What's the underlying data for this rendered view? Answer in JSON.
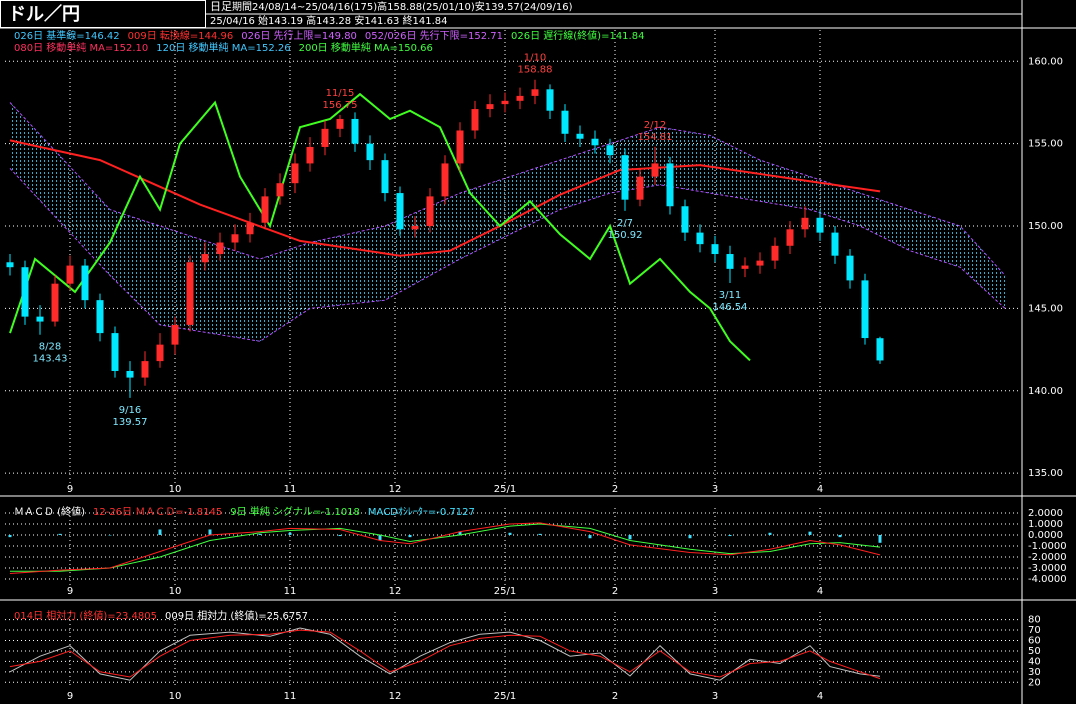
{
  "header": {
    "title": "ドル／円",
    "period_type": "日足",
    "period": "期間24/08/14~25/04/16(175)高158.88(25/01/10)安139.57(24/09/16)",
    "date": "25/04/16",
    "ohlc": "始143.19 高143.28 安141.63 終141.84"
  },
  "chart_data": [
    {
      "type": "candlestick",
      "up_color": "#ff2a2a",
      "down_color": "#00e8ff",
      "legend": [
        [
          {
            "text": "026日 基準線=146.42",
            "color": "#40c8ff"
          },
          {
            "text": "009日 転換線=144.96",
            "color": "#ff3030"
          },
          {
            "text": "026日 先行上限=149.80",
            "color": "#d060ff"
          },
          {
            "text": "052/026日 先行下限=152.71",
            "color": "#d060ff"
          },
          {
            "text": "026日 遅行線(終値)=141.84",
            "color": "#40ff40"
          }
        ],
        [
          {
            "text": "080日 移動単純 MA=152.10",
            "color": "#ff3060"
          },
          {
            "text": "120日 移動単純 MA=152.26",
            "color": "#40c8ff"
          },
          {
            "text": "200日 移動単純 MA=150.66",
            "color": "#40ff40"
          }
        ]
      ],
      "xlim": [
        -1,
        202
      ],
      "ylim": [
        134.4,
        161.9
      ],
      "xticks": [
        {
          "value": 12,
          "label": "9"
        },
        {
          "value": 33,
          "label": "10"
        },
        {
          "value": 56,
          "label": "11"
        },
        {
          "value": 77,
          "label": "12"
        },
        {
          "value": 99,
          "label": "25/1"
        },
        {
          "value": 121,
          "label": "2"
        },
        {
          "value": 141,
          "label": "3"
        },
        {
          "value": 162,
          "label": "4"
        }
      ],
      "yticks": [
        {
          "value": 135,
          "label": "135.00"
        },
        {
          "value": 140,
          "label": "140.00"
        },
        {
          "value": 145,
          "label": "145.00"
        },
        {
          "value": 150,
          "label": "150.00"
        },
        {
          "value": 155,
          "label": "155.00"
        },
        {
          "value": 160,
          "label": "160.00"
        }
      ],
      "x": [
        0,
        3,
        6,
        9,
        12,
        15,
        18,
        21,
        24,
        27,
        30,
        33,
        36,
        39,
        42,
        45,
        48,
        51,
        54,
        57,
        60,
        63,
        66,
        69,
        72,
        75,
        78,
        81,
        84,
        87,
        90,
        93,
        96,
        99,
        102,
        105,
        108,
        111,
        114,
        117,
        120,
        123,
        126,
        129,
        132,
        135,
        138,
        141,
        144,
        147,
        150,
        153,
        156,
        159,
        162,
        165,
        168,
        171,
        174
      ],
      "open": [
        147.8,
        147.5,
        144.5,
        144.2,
        146.5,
        147.6,
        145.5,
        143.5,
        141.2,
        140.8,
        141.8,
        142.8,
        144.0,
        147.8,
        148.3,
        149.0,
        149.5,
        150.2,
        151.8,
        152.6,
        153.8,
        154.8,
        155.9,
        156.5,
        155.0,
        154.0,
        152.0,
        149.8,
        150.0,
        151.8,
        153.8,
        155.8,
        157.1,
        157.4,
        157.6,
        157.9,
        158.3,
        157.0,
        155.6,
        155.3,
        154.9,
        154.3,
        151.6,
        153.0,
        153.8,
        151.2,
        149.6,
        148.9,
        148.3,
        147.4,
        147.6,
        147.9,
        148.8,
        149.8,
        150.5,
        149.6,
        148.2,
        146.7,
        143.19
      ],
      "high": [
        148.3,
        147.9,
        145.2,
        147.0,
        148.2,
        148.0,
        145.9,
        143.9,
        141.8,
        142.4,
        143.5,
        144.5,
        148.2,
        149.0,
        149.6,
        150.1,
        150.8,
        152.3,
        153.2,
        154.4,
        155.4,
        156.4,
        156.75,
        156.9,
        155.5,
        154.4,
        152.4,
        150.6,
        152.3,
        154.3,
        156.3,
        157.6,
        158.0,
        158.1,
        158.4,
        158.88,
        158.6,
        157.4,
        156.1,
        155.8,
        155.3,
        154.7,
        153.5,
        154.81,
        154.2,
        151.6,
        150.1,
        149.4,
        148.8,
        148.1,
        148.4,
        149.3,
        150.3,
        151.2,
        151.0,
        150.0,
        148.6,
        147.1,
        143.28
      ],
      "low": [
        147.0,
        144.0,
        143.4,
        143.9,
        146.1,
        145.0,
        143.0,
        140.8,
        139.57,
        140.3,
        141.4,
        142.2,
        143.6,
        147.3,
        147.9,
        148.5,
        149.0,
        149.8,
        151.3,
        152.0,
        153.3,
        154.3,
        155.4,
        154.5,
        153.4,
        151.5,
        149.4,
        149.3,
        149.6,
        151.3,
        153.3,
        155.3,
        156.6,
        156.9,
        157.1,
        157.4,
        156.5,
        155.1,
        154.8,
        154.4,
        153.8,
        150.92,
        151.2,
        152.5,
        150.7,
        149.1,
        148.4,
        147.8,
        146.54,
        146.9,
        147.1,
        147.4,
        148.3,
        149.3,
        149.1,
        147.7,
        146.2,
        142.8,
        141.63
      ],
      "close": [
        147.5,
        144.5,
        144.2,
        146.5,
        147.6,
        145.5,
        143.5,
        141.2,
        140.8,
        141.8,
        142.8,
        144.0,
        147.8,
        148.3,
        149.0,
        149.5,
        150.2,
        151.8,
        152.6,
        153.8,
        154.8,
        155.9,
        156.5,
        155.0,
        154.0,
        152.0,
        149.8,
        150.0,
        151.8,
        153.8,
        155.8,
        157.1,
        157.4,
        157.6,
        157.9,
        158.3,
        157.0,
        155.6,
        155.3,
        154.9,
        154.3,
        151.6,
        153.0,
        153.8,
        151.2,
        149.6,
        148.9,
        148.3,
        147.4,
        147.6,
        147.9,
        148.8,
        149.8,
        150.5,
        149.6,
        148.2,
        146.7,
        143.2,
        141.84
      ],
      "series": [
        {
          "color": "#b050ff",
          "style": "span",
          "x": [
            0,
            20,
            30,
            50,
            60,
            75,
            90,
            100,
            110,
            120,
            130,
            140,
            150,
            160,
            170,
            180,
            190,
            199
          ],
          "values": [
            157.5,
            151,
            150,
            148,
            149,
            150,
            152,
            153,
            154,
            155,
            156,
            155.5,
            154,
            153,
            152,
            151,
            150,
            147
          ]
        },
        {
          "color": "#b050ff",
          "style": "span",
          "x": [
            0,
            20,
            30,
            50,
            60,
            75,
            90,
            100,
            110,
            120,
            130,
            140,
            150,
            160,
            170,
            180,
            190,
            199
          ],
          "values": [
            153.5,
            147,
            144,
            143,
            145,
            145.5,
            148,
            149.5,
            151,
            152,
            152.5,
            152,
            151.5,
            151,
            150,
            148.5,
            147.5,
            145
          ]
        },
        {
          "color": "#ff2020",
          "style": "thick",
          "x": [
            0,
            18,
            38,
            58,
            78,
            88,
            98,
            110,
            122,
            138,
            158,
            174
          ],
          "values": [
            155.2,
            154,
            151.3,
            149.1,
            148.2,
            148.5,
            150,
            151.9,
            153.4,
            153.7,
            152.8,
            152.1
          ]
        },
        {
          "color": "#40ff20",
          "style": "thick",
          "x": [
            0,
            5,
            13,
            20,
            26,
            30,
            34,
            41,
            46,
            52,
            58,
            64,
            70,
            76,
            80,
            86,
            92,
            98,
            104,
            110,
            116,
            120,
            124,
            130,
            136,
            140,
            144,
            148
          ],
          "values": [
            143.5,
            148,
            146,
            149,
            153,
            151,
            155,
            157.5,
            153,
            150,
            156,
            156.5,
            158,
            156.5,
            157,
            156,
            152,
            150,
            151.5,
            149.5,
            148,
            150,
            146.5,
            148,
            146,
            145,
            143,
            141.84
          ]
        }
      ],
      "annotations": [
        {
          "date": "8/28",
          "value": 143.43,
          "x": 8,
          "position": "below"
        },
        {
          "date": "9/16",
          "value": 139.57,
          "x": 24,
          "position": "below"
        },
        {
          "date": "11/15",
          "value": 156.75,
          "x": 66,
          "position": "above"
        },
        {
          "date": "1/10",
          "value": 158.88,
          "x": 105,
          "position": "above"
        },
        {
          "date": "2/12",
          "value": 154.81,
          "x": 129,
          "position": "above"
        },
        {
          "date": "2/7",
          "value": 150.92,
          "x": 123,
          "position": "below"
        },
        {
          "date": "3/11",
          "value": 146.54,
          "x": 144,
          "position": "below"
        }
      ]
    },
    {
      "type": "line",
      "legend": [
        [
          {
            "text": "ＭＡＣＤ (終値)",
            "color": "#ffffff"
          },
          {
            "text": "12-26日 ＭＡＣＤ=-1.8145",
            "color": "#ff3030"
          },
          {
            "text": "9日 単純 シグナル=-1.1018",
            "color": "#40ff40"
          },
          {
            "text": "MACDｵｼﾚｰﾀｰ=-0.7127",
            "color": "#40e0ff"
          }
        ]
      ],
      "xlim": [
        -1,
        202
      ],
      "ylim": [
        -4.55,
        2.45
      ],
      "xticks": [
        {
          "value": 12,
          "label": "9"
        },
        {
          "value": 33,
          "label": "10"
        },
        {
          "value": 56,
          "label": "11"
        },
        {
          "value": 77,
          "label": "12"
        },
        {
          "value": 99,
          "label": "25/1"
        },
        {
          "value": 121,
          "label": "2"
        },
        {
          "value": 141,
          "label": "3"
        },
        {
          "value": 162,
          "label": "4"
        }
      ],
      "yticks": [
        {
          "value": 2,
          "label": "2.0000"
        },
        {
          "value": 1,
          "label": "1.0000"
        },
        {
          "value": 0,
          "label": "0.0000"
        },
        {
          "value": -1,
          "label": "-1.0000"
        },
        {
          "value": -2,
          "label": "-2.0000"
        },
        {
          "value": -3,
          "label": "-3.0000"
        },
        {
          "value": -4,
          "label": "-4.0000"
        }
      ],
      "x": [
        0,
        10,
        20,
        30,
        40,
        50,
        56,
        66,
        74,
        80,
        90,
        100,
        106,
        116,
        124,
        136,
        144,
        152,
        160,
        166,
        174
      ],
      "series": [
        {
          "color": "#40e0ff",
          "kind": "bar",
          "values": [
            -0.2,
            0.1,
            0,
            0.5,
            0.5,
            0.1,
            0.2,
            -0.1,
            -0.5,
            -0.2,
            0.3,
            0.2,
            0.1,
            -0.3,
            -0.4,
            -0.3,
            -0.1,
            0.2,
            0.3,
            -0.2,
            -0.7127
          ]
        },
        {
          "color": "#40ff40",
          "kind": "line",
          "values": [
            -3.3,
            -3.3,
            -3.0,
            -2.0,
            -0.5,
            0.2,
            0.4,
            0.6,
            0,
            -0.6,
            0,
            0.8,
            1.0,
            0.6,
            -0.5,
            -1.3,
            -1.7,
            -1.5,
            -0.8,
            -0.7,
            -1.1018
          ]
        },
        {
          "color": "#ff2020",
          "kind": "line",
          "values": [
            -3.5,
            -3.2,
            -3.0,
            -1.5,
            0,
            0.3,
            0.6,
            0.5,
            -0.5,
            -0.8,
            0.3,
            1.0,
            1.1,
            0.3,
            -0.9,
            -1.6,
            -1.8,
            -1.3,
            -0.5,
            -0.9,
            -1.8145
          ]
        }
      ]
    },
    {
      "type": "line",
      "legend": [
        [
          {
            "text": "014日 相対力 (終値)=23.4805",
            "color": "#ff3030"
          },
          {
            "text": "009日 相対力 (終値)=25.6757",
            "color": "#ffffff"
          }
        ]
      ],
      "xlim": [
        -1,
        202
      ],
      "ylim": [
        14.5,
        87.3
      ],
      "xticks": [
        {
          "value": 12,
          "label": "9"
        },
        {
          "value": 33,
          "label": "10"
        },
        {
          "value": 56,
          "label": "11"
        },
        {
          "value": 77,
          "label": "12"
        },
        {
          "value": 99,
          "label": "25/1"
        },
        {
          "value": 121,
          "label": "2"
        },
        {
          "value": 141,
          "label": "3"
        },
        {
          "value": 162,
          "label": "4"
        }
      ],
      "yticks": [
        20,
        30,
        40,
        50,
        60,
        70,
        80
      ],
      "x": [
        0,
        6,
        12,
        18,
        24,
        30,
        36,
        44,
        52,
        58,
        64,
        70,
        76,
        82,
        88,
        94,
        100,
        106,
        112,
        118,
        124,
        130,
        136,
        142,
        148,
        154,
        160,
        164,
        170,
        174
      ],
      "series": [
        {
          "color": "#c0c0c0",
          "kind": "line",
          "values": [
            30,
            45,
            55,
            28,
            22,
            50,
            65,
            68,
            64,
            72,
            66,
            45,
            28,
            45,
            58,
            66,
            68,
            60,
            45,
            48,
            26,
            55,
            28,
            22,
            42,
            38,
            55,
            35,
            28,
            25.6757
          ]
        },
        {
          "color": "#ff2020",
          "kind": "line",
          "values": [
            35,
            40,
            50,
            30,
            25,
            45,
            60,
            65,
            66,
            70,
            68,
            50,
            30,
            40,
            55,
            62,
            65,
            64,
            50,
            45,
            30,
            50,
            30,
            25,
            38,
            40,
            50,
            40,
            30,
            23.4805
          ]
        }
      ]
    }
  ]
}
